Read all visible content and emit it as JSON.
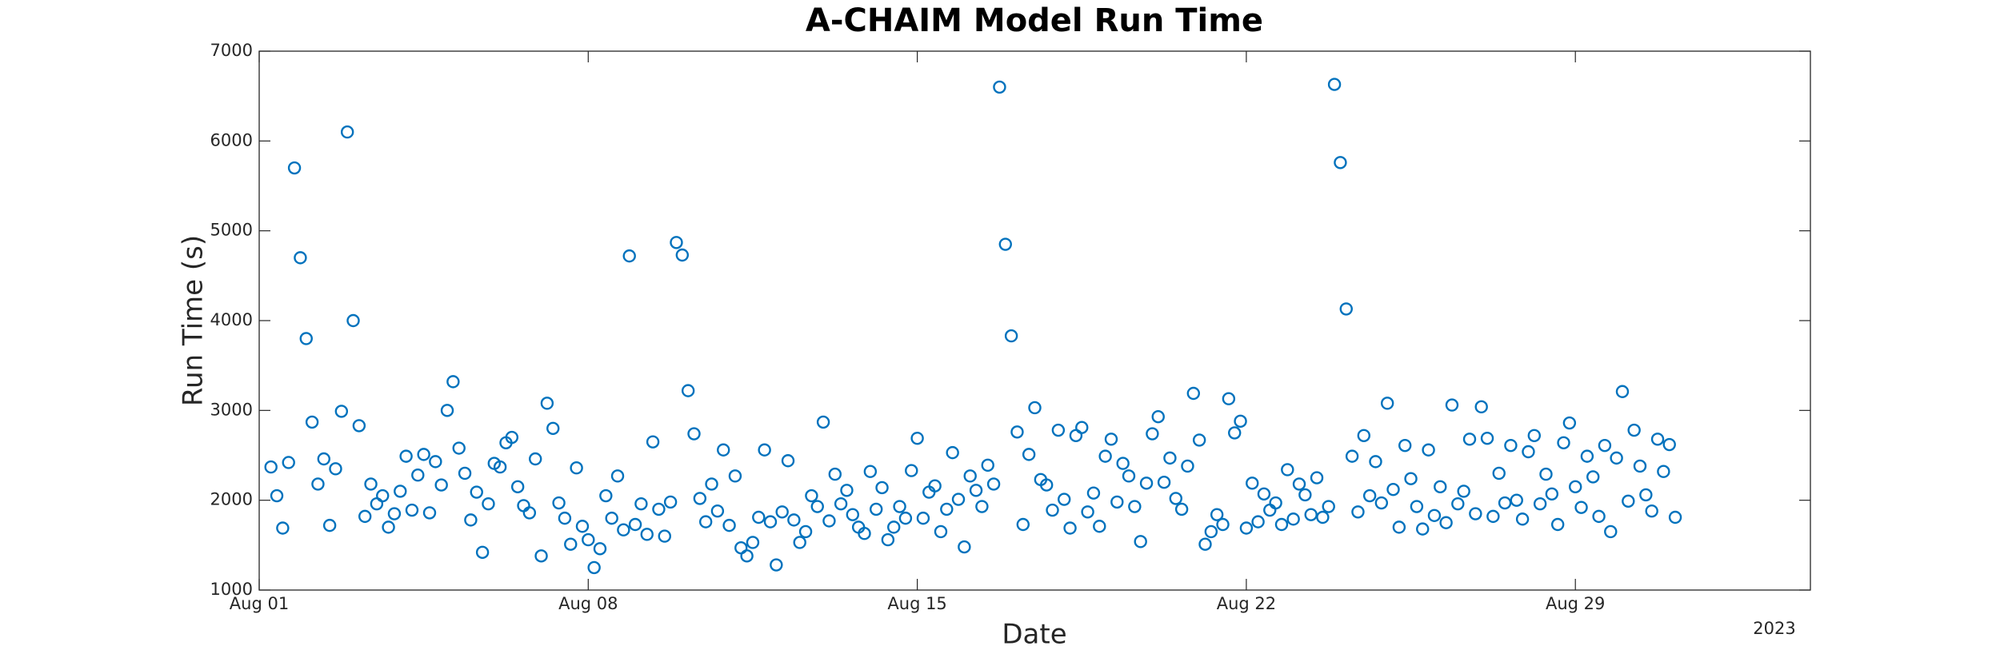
{
  "chart_data": {
    "type": "scatter",
    "title": "A-CHAIM Model Run Time",
    "x_label": "Date",
    "y_label": "Run Time (s)",
    "x_year_label": "2023",
    "color": "#0072BD",
    "marker": "open-circle",
    "grid": false,
    "xlim": [
      "2023-08-01",
      "2023-09-03"
    ],
    "xticks": [
      {
        "value": "2023-08-01",
        "label": "Aug 01"
      },
      {
        "value": "2023-08-08",
        "label": "Aug 08"
      },
      {
        "value": "2023-08-15",
        "label": "Aug 15"
      },
      {
        "value": "2023-08-22",
        "label": "Aug 22"
      },
      {
        "value": "2023-08-29",
        "label": "Aug 29"
      }
    ],
    "ylim": [
      1000,
      7000
    ],
    "yticks": [
      1000,
      2000,
      3000,
      4000,
      5000,
      6000,
      7000
    ],
    "x": [
      "2023-08-01T06:00",
      "2023-08-01T09:00",
      "2023-08-01T12:00",
      "2023-08-01T15:00",
      "2023-08-01T18:00",
      "2023-08-01T21:00",
      "2023-08-02T00:00",
      "2023-08-02T03:00",
      "2023-08-02T06:00",
      "2023-08-02T09:00",
      "2023-08-02T12:00",
      "2023-08-02T15:00",
      "2023-08-02T18:00",
      "2023-08-02T21:00",
      "2023-08-03T00:00",
      "2023-08-03T03:00",
      "2023-08-03T06:00",
      "2023-08-03T09:00",
      "2023-08-03T12:00",
      "2023-08-03T15:00",
      "2023-08-03T18:00",
      "2023-08-03T21:00",
      "2023-08-04T00:00",
      "2023-08-04T03:00",
      "2023-08-04T06:00",
      "2023-08-04T09:00",
      "2023-08-04T12:00",
      "2023-08-04T15:00",
      "2023-08-04T18:00",
      "2023-08-04T21:00",
      "2023-08-05T00:00",
      "2023-08-05T03:00",
      "2023-08-05T06:00",
      "2023-08-05T09:00",
      "2023-08-05T12:00",
      "2023-08-05T15:00",
      "2023-08-05T18:00",
      "2023-08-05T21:00",
      "2023-08-06T00:00",
      "2023-08-06T03:00",
      "2023-08-06T06:00",
      "2023-08-06T09:00",
      "2023-08-06T12:00",
      "2023-08-06T15:00",
      "2023-08-06T18:00",
      "2023-08-06T21:00",
      "2023-08-07T00:00",
      "2023-08-07T03:00",
      "2023-08-07T06:00",
      "2023-08-07T09:00",
      "2023-08-07T12:00",
      "2023-08-07T15:00",
      "2023-08-07T18:00",
      "2023-08-07T21:00",
      "2023-08-08T00:00",
      "2023-08-08T03:00",
      "2023-08-08T06:00",
      "2023-08-08T09:00",
      "2023-08-08T12:00",
      "2023-08-08T15:00",
      "2023-08-08T18:00",
      "2023-08-08T21:00",
      "2023-08-09T00:00",
      "2023-08-09T03:00",
      "2023-08-09T06:00",
      "2023-08-09T09:00",
      "2023-08-09T12:00",
      "2023-08-09T15:00",
      "2023-08-09T18:00",
      "2023-08-09T21:00",
      "2023-08-10T00:00",
      "2023-08-10T03:00",
      "2023-08-10T06:00",
      "2023-08-10T09:00",
      "2023-08-10T12:00",
      "2023-08-10T15:00",
      "2023-08-10T18:00",
      "2023-08-10T21:00",
      "2023-08-11T00:00",
      "2023-08-11T03:00",
      "2023-08-11T06:00",
      "2023-08-11T09:00",
      "2023-08-11T12:00",
      "2023-08-11T15:00",
      "2023-08-11T18:00",
      "2023-08-11T21:00",
      "2023-08-12T00:00",
      "2023-08-12T03:00",
      "2023-08-12T06:00",
      "2023-08-12T09:00",
      "2023-08-12T12:00",
      "2023-08-12T15:00",
      "2023-08-12T18:00",
      "2023-08-12T21:00",
      "2023-08-13T00:00",
      "2023-08-13T03:00",
      "2023-08-13T06:00",
      "2023-08-13T09:00",
      "2023-08-13T12:00",
      "2023-08-13T15:00",
      "2023-08-13T18:00",
      "2023-08-13T21:00",
      "2023-08-14T00:00",
      "2023-08-14T03:00",
      "2023-08-14T06:00",
      "2023-08-14T09:00",
      "2023-08-14T12:00",
      "2023-08-14T15:00",
      "2023-08-14T18:00",
      "2023-08-14T21:00",
      "2023-08-15T00:00",
      "2023-08-15T03:00",
      "2023-08-15T06:00",
      "2023-08-15T09:00",
      "2023-08-15T12:00",
      "2023-08-15T15:00",
      "2023-08-15T18:00",
      "2023-08-15T21:00",
      "2023-08-16T00:00",
      "2023-08-16T03:00",
      "2023-08-16T06:00",
      "2023-08-16T09:00",
      "2023-08-16T12:00",
      "2023-08-16T15:00",
      "2023-08-16T18:00",
      "2023-08-16T21:00",
      "2023-08-17T00:00",
      "2023-08-17T03:00",
      "2023-08-17T06:00",
      "2023-08-17T09:00",
      "2023-08-17T12:00",
      "2023-08-17T15:00",
      "2023-08-17T18:00",
      "2023-08-17T21:00",
      "2023-08-18T00:00",
      "2023-08-18T03:00",
      "2023-08-18T06:00",
      "2023-08-18T09:00",
      "2023-08-18T12:00",
      "2023-08-18T15:00",
      "2023-08-18T18:00",
      "2023-08-18T21:00",
      "2023-08-19T00:00",
      "2023-08-19T03:00",
      "2023-08-19T06:00",
      "2023-08-19T09:00",
      "2023-08-19T12:00",
      "2023-08-19T15:00",
      "2023-08-19T18:00",
      "2023-08-19T21:00",
      "2023-08-20T00:00",
      "2023-08-20T03:00",
      "2023-08-20T06:00",
      "2023-08-20T09:00",
      "2023-08-20T12:00",
      "2023-08-20T15:00",
      "2023-08-20T18:00",
      "2023-08-20T21:00",
      "2023-08-21T00:00",
      "2023-08-21T03:00",
      "2023-08-21T06:00",
      "2023-08-21T09:00",
      "2023-08-21T12:00",
      "2023-08-21T15:00",
      "2023-08-21T18:00",
      "2023-08-21T21:00",
      "2023-08-22T00:00",
      "2023-08-22T03:00",
      "2023-08-22T06:00",
      "2023-08-22T09:00",
      "2023-08-22T12:00",
      "2023-08-22T15:00",
      "2023-08-22T18:00",
      "2023-08-22T21:00",
      "2023-08-23T00:00",
      "2023-08-23T03:00",
      "2023-08-23T06:00",
      "2023-08-23T09:00",
      "2023-08-23T12:00",
      "2023-08-23T15:00",
      "2023-08-23T18:00",
      "2023-08-23T21:00",
      "2023-08-24T00:00",
      "2023-08-24T03:00",
      "2023-08-24T06:00",
      "2023-08-24T09:00",
      "2023-08-24T12:00",
      "2023-08-24T15:00",
      "2023-08-24T18:00",
      "2023-08-24T21:00",
      "2023-08-25T00:00",
      "2023-08-25T03:00",
      "2023-08-25T06:00",
      "2023-08-25T09:00",
      "2023-08-25T12:00",
      "2023-08-25T15:00",
      "2023-08-25T18:00",
      "2023-08-25T21:00",
      "2023-08-26T00:00",
      "2023-08-26T03:00",
      "2023-08-26T06:00",
      "2023-08-26T09:00",
      "2023-08-26T12:00",
      "2023-08-26T15:00",
      "2023-08-26T18:00",
      "2023-08-26T21:00",
      "2023-08-27T00:00",
      "2023-08-27T03:00",
      "2023-08-27T06:00",
      "2023-08-27T09:00",
      "2023-08-27T12:00",
      "2023-08-27T15:00",
      "2023-08-27T18:00",
      "2023-08-27T21:00",
      "2023-08-28T00:00",
      "2023-08-28T03:00",
      "2023-08-28T06:00",
      "2023-08-28T09:00",
      "2023-08-28T12:00",
      "2023-08-28T15:00",
      "2023-08-28T18:00",
      "2023-08-28T21:00",
      "2023-08-29T00:00",
      "2023-08-29T03:00",
      "2023-08-29T06:00",
      "2023-08-29T09:00",
      "2023-08-29T12:00",
      "2023-08-29T15:00",
      "2023-08-29T18:00",
      "2023-08-29T21:00",
      "2023-08-30T00:00",
      "2023-08-30T03:00",
      "2023-08-30T06:00",
      "2023-08-30T09:00",
      "2023-08-30T12:00",
      "2023-08-30T15:00",
      "2023-08-30T18:00",
      "2023-08-30T21:00",
      "2023-08-31T00:00",
      "2023-08-31T03:00"
    ],
    "values": [
      2370,
      2050,
      1690,
      2420,
      5700,
      4700,
      3800,
      2870,
      2180,
      2460,
      1720,
      2350,
      2990,
      6100,
      4000,
      2830,
      1820,
      2180,
      1960,
      2050,
      1700,
      1850,
      2100,
      2490,
      1890,
      2280,
      2510,
      1860,
      2430,
      2170,
      3000,
      3320,
      2580,
      2300,
      1780,
      2090,
      1420,
      1960,
      2410,
      2370,
      2640,
      2700,
      2150,
      1940,
      1860,
      2460,
      1380,
      3080,
      2800,
      1970,
      1800,
      1510,
      2360,
      1710,
      1560,
      1250,
      1460,
      2050,
      1800,
      2270,
      1670,
      4720,
      1730,
      1960,
      1620,
      2650,
      1900,
      1600,
      1980,
      4870,
      4730,
      3220,
      2740,
      2020,
      1760,
      2180,
      1880,
      2560,
      1720,
      2270,
      1470,
      1380,
      1530,
      1810,
      2560,
      1760,
      1280,
      1870,
      2440,
      1780,
      1530,
      1650,
      2050,
      1930,
      2870,
      1770,
      2290,
      1960,
      2110,
      1840,
      1700,
      1630,
      2320,
      1900,
      2140,
      1560,
      1700,
      1930,
      1800,
      2330,
      2690,
      1800,
      2090,
      2160,
      1650,
      1900,
      2530,
      2010,
      1480,
      2270,
      2110,
      1930,
      2390,
      2180,
      6600,
      4850,
      3830,
      2760,
      1730,
      2510,
      3030,
      2230,
      2170,
      1890,
      2780,
      2010,
      1690,
      2720,
      2810,
      1870,
      2080,
      1710,
      2490,
      2680,
      1980,
      2410,
      2270,
      1930,
      1540,
      2190,
      2740,
      2930,
      2200,
      2470,
      2020,
      1900,
      2380,
      3190,
      2670,
      1510,
      1650,
      1840,
      1730,
      3130,
      2750,
      2880,
      1690,
      2190,
      1760,
      2070,
      1890,
      1970,
      1730,
      2340,
      1790,
      2180,
      2060,
      1840,
      2250,
      1810,
      1930,
      6630,
      5760,
      4130,
      2490,
      1870,
      2720,
      2050,
      2430,
      1970,
      3080,
      2120,
      1700,
      2610,
      2240,
      1930,
      1680,
      2560,
      1830,
      2150,
      1750,
      3060,
      1960,
      2100,
      2680,
      1850,
      3040,
      2690,
      1820,
      2300,
      1970,
      2610,
      2000,
      1790,
      2540,
      2720,
      1960,
      2290,
      2070,
      1730,
      2640,
      2860,
      2150,
      1920,
      2490,
      2260,
      1820,
      2610,
      1650,
      2470,
      3210,
      1990,
      2780,
      2380,
      2060,
      1880,
      2680,
      2320,
      2620,
      1810
    ]
  }
}
